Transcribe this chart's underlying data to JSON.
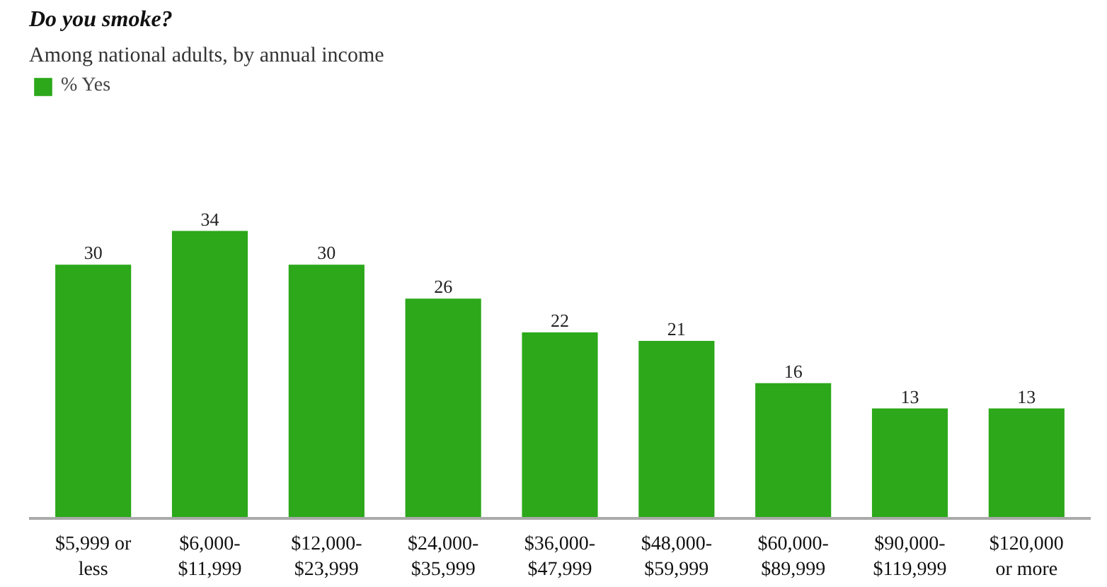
{
  "chart_data": {
    "type": "bar",
    "title": "Do you smoke?",
    "subtitle": "Among national adults, by annual income",
    "categories": [
      "$5,999 or\nless",
      "$6,000-\n$11,999",
      "$12,000-\n$23,999",
      "$24,000-\n$35,999",
      "$36,000-\n$47,999",
      "$48,000-\n$59,999",
      "$60,000-\n$89,999",
      "$90,000-\n$119,999",
      "$120,000\nor more"
    ],
    "series": [
      {
        "name": "% Yes",
        "color": "#2ca81a",
        "values": [
          30,
          34,
          30,
          26,
          22,
          21,
          16,
          13,
          13
        ]
      }
    ],
    "data_labels": true,
    "legend": "top left"
  }
}
